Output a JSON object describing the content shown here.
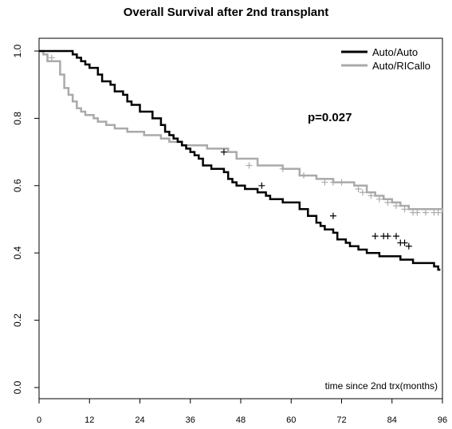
{
  "chart_data": {
    "type": "line",
    "title": "Overall Survival after 2nd transplant",
    "xlabel": "time since 2nd trx(months)",
    "ylabel": "",
    "xlim": [
      0,
      96
    ],
    "ylim": [
      0,
      1
    ],
    "x_ticks": [
      "0",
      "12",
      "24",
      "36",
      "48",
      "60",
      "72",
      "84",
      "96"
    ],
    "y_ticks": [
      "0.0",
      "0.2",
      "0.4",
      "0.6",
      "0.8",
      "1.0"
    ],
    "annotation": "p=0.027",
    "legend_position": "top-right",
    "colors": {
      "auto_auto": "#000000",
      "auto_ricallo": "#aaaaaa"
    },
    "series": [
      {
        "name": "Auto/Auto",
        "color": "#000000",
        "step_x": [
          0,
          8,
          9,
          10,
          11,
          12,
          14,
          15,
          17,
          18,
          20,
          21,
          22,
          24,
          27,
          29,
          30,
          31,
          32,
          33,
          34,
          35,
          36,
          37,
          38,
          39,
          41,
          44,
          45,
          46,
          47,
          49,
          52,
          54,
          55,
          58,
          62,
          64,
          66,
          67,
          68,
          70,
          71,
          73,
          74,
          76,
          78,
          81,
          86,
          87,
          89,
          91,
          94,
          95,
          95.5
        ],
        "step_y": [
          1.0,
          0.99,
          0.98,
          0.97,
          0.96,
          0.95,
          0.93,
          0.91,
          0.9,
          0.88,
          0.87,
          0.85,
          0.84,
          0.82,
          0.8,
          0.78,
          0.76,
          0.75,
          0.74,
          0.73,
          0.72,
          0.71,
          0.7,
          0.69,
          0.68,
          0.66,
          0.65,
          0.64,
          0.62,
          0.61,
          0.6,
          0.59,
          0.58,
          0.57,
          0.56,
          0.55,
          0.53,
          0.51,
          0.49,
          0.48,
          0.47,
          0.46,
          0.44,
          0.43,
          0.42,
          0.41,
          0.4,
          0.39,
          0.38,
          0.38,
          0.37,
          0.37,
          0.36,
          0.35,
          0.35
        ],
        "censor_x": [
          44,
          53,
          70,
          80,
          82,
          83,
          85,
          86,
          87,
          88
        ],
        "censor_y": [
          0.7,
          0.6,
          0.51,
          0.45,
          0.45,
          0.45,
          0.45,
          0.43,
          0.43,
          0.42
        ]
      },
      {
        "name": "Auto/RICallo",
        "color": "#aaaaaa",
        "step_x": [
          0,
          1,
          2,
          5,
          6,
          7,
          8,
          9,
          10,
          11,
          13,
          14,
          16,
          18,
          21,
          25,
          29,
          31,
          34,
          40,
          45,
          47,
          52,
          58,
          62,
          66,
          70,
          75,
          78,
          80,
          82,
          84,
          86,
          88,
          96
        ],
        "step_y": [
          1.0,
          0.99,
          0.97,
          0.93,
          0.89,
          0.87,
          0.85,
          0.83,
          0.82,
          0.81,
          0.8,
          0.79,
          0.78,
          0.77,
          0.76,
          0.75,
          0.74,
          0.73,
          0.72,
          0.71,
          0.7,
          0.68,
          0.66,
          0.65,
          0.63,
          0.62,
          0.61,
          0.6,
          0.58,
          0.57,
          0.56,
          0.55,
          0.54,
          0.53,
          0.52
        ],
        "censor_x": [
          3,
          50,
          58,
          63,
          68,
          70,
          72,
          76,
          77,
          79,
          81,
          83,
          85,
          87,
          89,
          90,
          92,
          94,
          95
        ],
        "censor_y": [
          0.98,
          0.66,
          0.65,
          0.63,
          0.61,
          0.61,
          0.61,
          0.59,
          0.58,
          0.57,
          0.56,
          0.55,
          0.54,
          0.53,
          0.52,
          0.52,
          0.52,
          0.52,
          0.52
        ]
      }
    ]
  }
}
